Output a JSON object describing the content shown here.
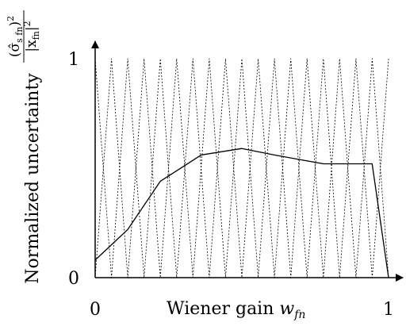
{
  "chart_data": {
    "type": "line",
    "title": "",
    "xlabel": "Wiener gain",
    "xlabel_symbol": "w",
    "xlabel_symbol_sub": "fn",
    "ylabel": "Normalized uncertainty",
    "ylabel_fraction": {
      "numerator_core": "(σ̂",
      "numerator_sub": "s fn",
      "numerator_close": ")",
      "numerator_exp": "2",
      "denominator_core": "|x",
      "denominator_sub": "fn",
      "denominator_close": "|",
      "denominator_exp": "2"
    },
    "xlim": [
      0,
      1
    ],
    "ylim": [
      0,
      1
    ],
    "x_ticks": [
      {
        "value": 0,
        "label": "0"
      },
      {
        "value": 1,
        "label": "1"
      }
    ],
    "y_ticks": [
      {
        "value": 0,
        "label": "0"
      },
      {
        "value": 1,
        "label": "1"
      }
    ],
    "grid": false,
    "legend": "none",
    "series": [
      {
        "style": "solid",
        "color": "#000000",
        "x": [
          0.0,
          0.111,
          0.222,
          0.361,
          0.5,
          0.611,
          0.778,
          0.944,
          1.0
        ],
        "y": [
          0.08,
          0.22,
          0.44,
          0.56,
          0.59,
          0.56,
          0.52,
          0.52,
          0.0
        ]
      },
      {
        "style": "dotted",
        "color": "#000000",
        "x": [
          0.0,
          0.0556,
          0.1111,
          0.1667,
          0.2222,
          0.2778,
          0.3333,
          0.3889,
          0.4444,
          0.5,
          0.5556,
          0.6111,
          0.6667,
          0.7222,
          0.7778,
          0.8333,
          0.8889,
          0.9444,
          1.0
        ],
        "y": [
          1,
          0,
          1,
          0,
          1,
          0,
          1,
          0,
          1,
          0,
          1,
          0,
          1,
          0,
          1,
          0,
          1,
          0,
          1
        ]
      },
      {
        "style": "dotted",
        "color": "#000000",
        "x": [
          0.0,
          0.0556,
          0.1111,
          0.1667,
          0.2222,
          0.2778,
          0.3333,
          0.3889,
          0.4444,
          0.5,
          0.5556,
          0.6111,
          0.6667,
          0.7222,
          0.7778,
          0.8333,
          0.8889,
          0.9444,
          1.0
        ],
        "y": [
          0,
          1,
          0,
          1,
          0,
          1,
          0,
          1,
          0,
          1,
          0,
          1,
          0,
          1,
          0,
          1,
          0,
          1,
          0
        ]
      }
    ]
  }
}
